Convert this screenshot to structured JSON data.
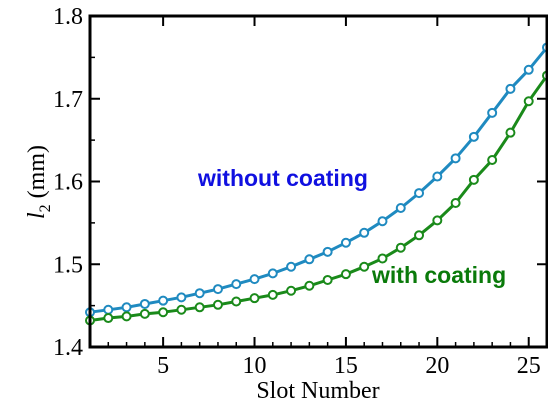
{
  "chart_data": {
    "type": "line",
    "title": "",
    "xlabel": "Slot Number",
    "ylabel_main": "l",
    "ylabel_sub": "2",
    "ylabel_unit": "(mm)",
    "xlim": [
      1,
      26
    ],
    "ylim": [
      1.4,
      1.8
    ],
    "xticks": [
      5,
      10,
      15,
      20,
      25
    ],
    "yticks": [
      1.4,
      1.5,
      1.6,
      1.7,
      1.8
    ],
    "ytick_labels": [
      "1.4",
      "1.5",
      "1.6",
      "1.7",
      "1.8"
    ],
    "grid": false,
    "x": [
      1,
      2,
      3,
      4,
      5,
      6,
      7,
      8,
      9,
      10,
      11,
      12,
      13,
      14,
      15,
      16,
      17,
      18,
      19,
      20,
      21,
      22,
      23,
      24,
      25,
      26
    ],
    "series": [
      {
        "name": "without coating",
        "color": "#1f8ac0",
        "label_color": "#1010e0",
        "values": [
          1.442,
          1.445,
          1.448,
          1.452,
          1.456,
          1.46,
          1.465,
          1.47,
          1.476,
          1.482,
          1.489,
          1.497,
          1.506,
          1.515,
          1.526,
          1.538,
          1.552,
          1.568,
          1.586,
          1.606,
          1.628,
          1.654,
          1.683,
          1.712,
          1.735,
          1.762
        ]
      },
      {
        "name": "with coating",
        "color": "#1a8a1a",
        "label_color": "#0a7a0a",
        "values": [
          1.432,
          1.435,
          1.437,
          1.44,
          1.442,
          1.445,
          1.448,
          1.451,
          1.455,
          1.459,
          1.463,
          1.468,
          1.474,
          1.481,
          1.488,
          1.497,
          1.507,
          1.52,
          1.535,
          1.553,
          1.574,
          1.602,
          1.626,
          1.659,
          1.697,
          1.728
        ]
      }
    ]
  }
}
